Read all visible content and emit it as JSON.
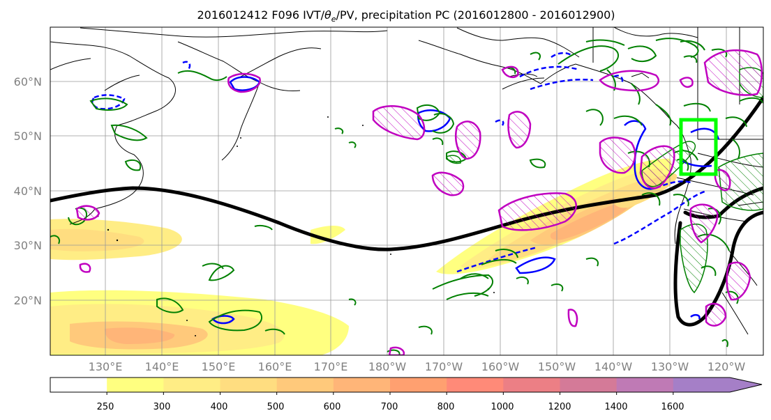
{
  "title": {
    "part1": "2016012412 F096 IVT/",
    "theta": "θ",
    "sub": "e",
    "part2": "/PV, precipitation PC (2016012800 - 2016012900)"
  },
  "map": {
    "lat_labels": [
      "60°N",
      "50°N",
      "40°N",
      "30°N",
      "20°N"
    ],
    "lon_labels": [
      "130°E",
      "140°E",
      "150°E",
      "160°E",
      "170°E",
      "180°W",
      "170°W",
      "160°W",
      "150°W",
      "140°W",
      "130°W",
      "120°W"
    ],
    "colors": {
      "positive_pc": "#c000c0",
      "negative_pc": "#0000ff",
      "pv_contour": "#008000",
      "jet_line": "#000000",
      "target_box": "#00ff00",
      "grid": "#999999",
      "coast": "#000000"
    }
  },
  "colorbar": {
    "ticks": [
      "250",
      "300",
      "400",
      "500",
      "600",
      "700",
      "800",
      "1000",
      "1200",
      "1400",
      "1600"
    ],
    "colors": [
      "#ffffff",
      "#ffff80",
      "#ffed85",
      "#ffdd80",
      "#ffc97b",
      "#ffb578",
      "#ffa070",
      "#ff8a78",
      "#ec7f85",
      "#d47a98",
      "#bf7ab5",
      "#a57fc7"
    ]
  }
}
